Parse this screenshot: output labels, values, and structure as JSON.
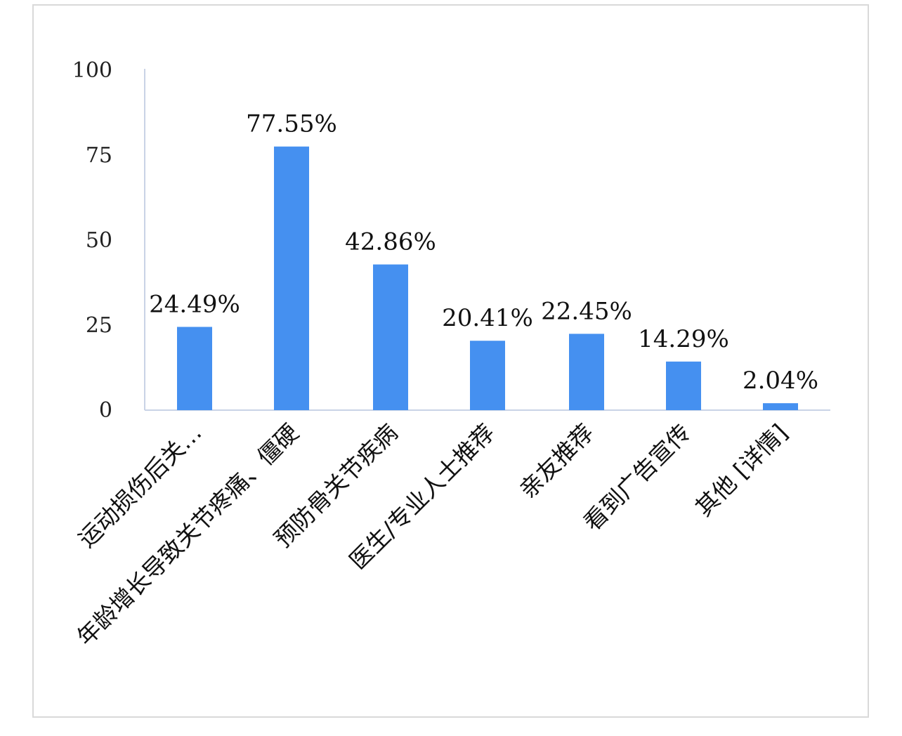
{
  "chart_data": {
    "type": "bar",
    "title": "",
    "xlabel": "",
    "ylabel": "",
    "categories": [
      "运动损伤后关…",
      "年龄增长导致关节疼痛、僵硬",
      "预防骨关节疾病",
      "医生/专业人士推荐",
      "亲友推荐",
      "看到广告宣传",
      "其他 [详情]"
    ],
    "values": [
      24.49,
      77.55,
      42.86,
      20.41,
      22.45,
      14.29,
      2.04
    ],
    "data_labels": [
      "24.49%",
      "77.55%",
      "42.86%",
      "20.41%",
      "22.45%",
      "14.29%",
      "2.04%"
    ],
    "yticks": [
      "0",
      "25",
      "50",
      "75",
      "100"
    ],
    "ylim": [
      0,
      100
    ],
    "grid": false,
    "legend": "none",
    "bar_color": "#4590f0"
  }
}
